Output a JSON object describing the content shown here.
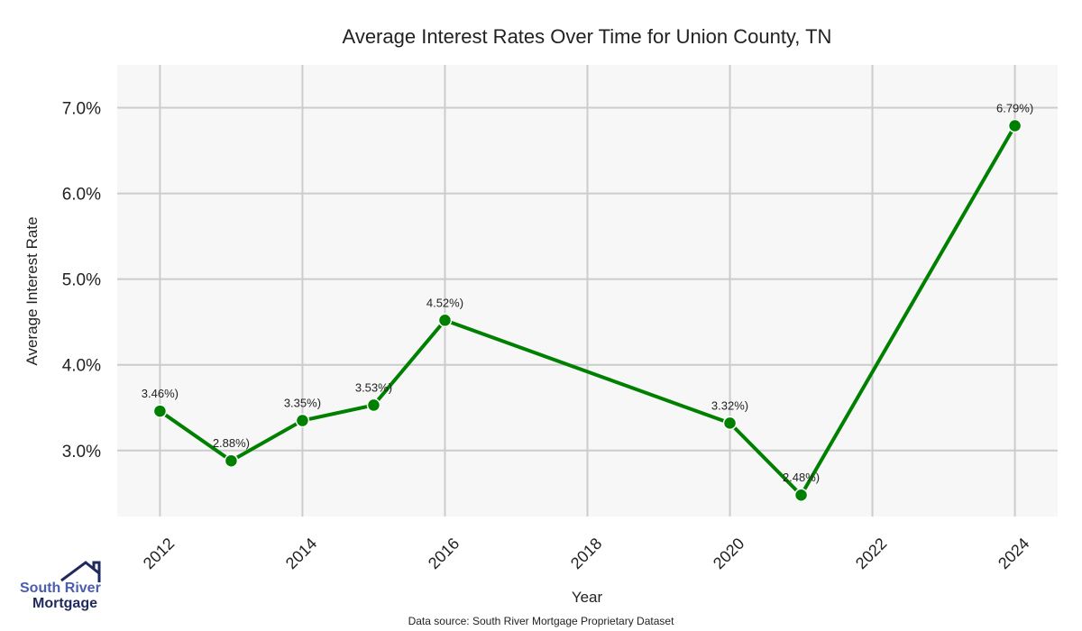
{
  "chart_data": {
    "type": "line",
    "title": "Average Interest Rates Over Time for Union County, TN",
    "xlabel": "Year",
    "ylabel": "Average Interest Rate",
    "x": [
      2012,
      2013,
      2014,
      2015,
      2016,
      2020,
      2021,
      2024
    ],
    "values": [
      3.46,
      2.88,
      3.35,
      3.53,
      4.52,
      3.32,
      2.48,
      6.79
    ],
    "data_labels": [
      "3.46%)",
      "2.88%)",
      "3.35%)",
      "3.53%)",
      "4.52%)",
      "3.32%)",
      "2.48%)",
      "6.79%)"
    ],
    "xticks": [
      2012,
      2014,
      2016,
      2018,
      2020,
      2022,
      2024
    ],
    "yticks": [
      3.0,
      4.0,
      5.0,
      6.0,
      7.0
    ],
    "ytick_labels": [
      "3.0%",
      "4.0%",
      "5.0%",
      "6.0%",
      "7.0%"
    ],
    "xlim": [
      2011.4,
      2024.6
    ],
    "ylim": [
      2.23,
      7.5
    ],
    "grid": true,
    "line_color": "#008000",
    "background": "#f7f7f7"
  },
  "footer": {
    "source": "Data source: South River Mortgage Proprietary Dataset"
  },
  "logo": {
    "line1": "South River",
    "line2": "Mortgage"
  }
}
